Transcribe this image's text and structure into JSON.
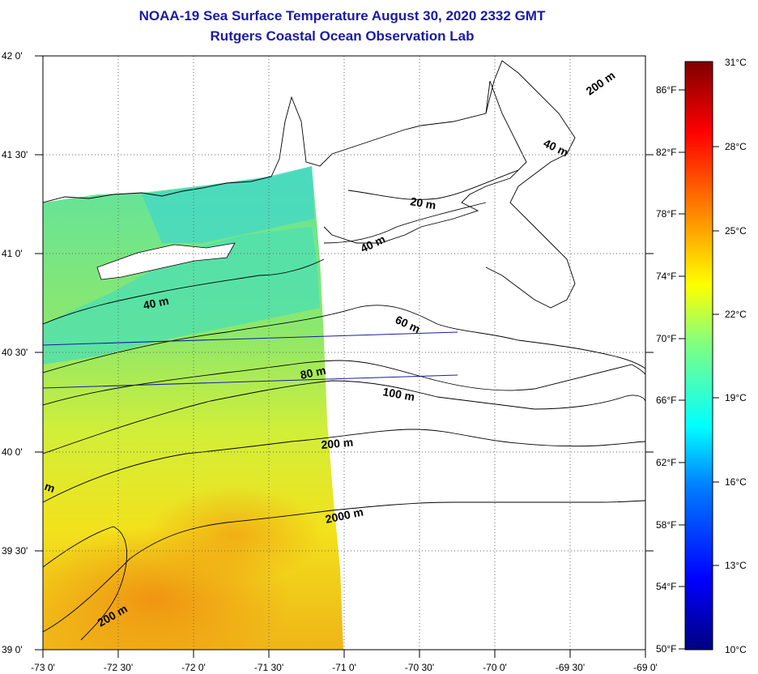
{
  "title": "NOAA-19 Sea Surface Temperature August 30, 2020 2332 GMT",
  "subtitle": "Rutgers Coastal Ocean Observation Lab",
  "map": {
    "lon_labels": [
      "-73 0'",
      "-72 30'",
      "-72 0'",
      "-71 30'",
      "-71 0'",
      "-70 30'",
      "-70 0'",
      "-69 30'",
      "-69 0'"
    ],
    "lat_labels": [
      "42 0'",
      "41 30'",
      "41 0'",
      "40 30'",
      "40 0'",
      "39 30'",
      "39 0'"
    ],
    "contour_labels": [
      "200 m",
      "40 m",
      "20 m",
      "40 m",
      "40 m",
      "60 m",
      "80 m",
      "100 m",
      "200 m",
      "2000 m",
      "200 m",
      "m"
    ]
  },
  "colorbar": {
    "celsius_labels": [
      "31°C",
      "28°C",
      "25°C",
      "22°C",
      "19°C",
      "16°C",
      "13°C",
      "10°C"
    ],
    "fahrenheit_labels": [
      "86°F",
      "82°F",
      "78°F",
      "74°F",
      "70°F",
      "66°F",
      "62°F",
      "58°F",
      "54°F",
      "50°F"
    ],
    "colors": [
      "#000080",
      "#0000ff",
      "#0080ff",
      "#00ffff",
      "#80ff80",
      "#ffff00",
      "#ff8000",
      "#ff0000",
      "#800000"
    ]
  }
}
